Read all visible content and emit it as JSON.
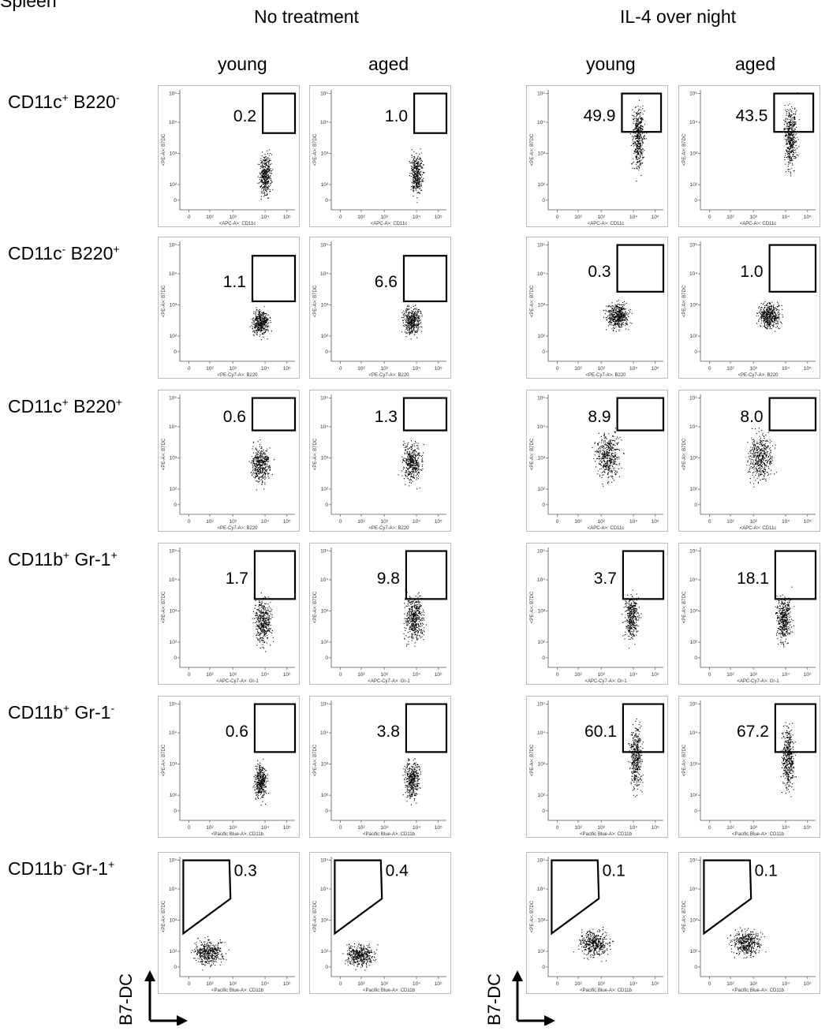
{
  "figure": {
    "corner_label": "Spleen",
    "conditions": [
      "No treatment",
      "IL-4 over night"
    ],
    "groups": [
      "young",
      "aged"
    ],
    "y_axis_label": "B7-DC"
  },
  "chart_data": {
    "type": "scatter",
    "x_ticks": [
      "0",
      "10²",
      "10³",
      "10⁴",
      "10⁵"
    ],
    "y_ticks": [
      "10⁵",
      "10⁴",
      "10³",
      "10²",
      "0"
    ],
    "y_axis_title": "<PE-A>: B7DC",
    "rows": [
      {
        "label_parts": [
          [
            "CD11c",
            "+"
          ],
          [
            "B220",
            "-"
          ]
        ],
        "x_axis_titles": [
          "<APC-A>: CD11c",
          "<APC-A>: CD11c",
          "<APC-A>: CD11c",
          "<APC-A>: CD11c"
        ],
        "gate_values": [
          "0.2",
          "1.0",
          "49.9",
          "43.5"
        ]
      },
      {
        "label_parts": [
          [
            "CD11c",
            "-"
          ],
          [
            "B220",
            "+"
          ]
        ],
        "x_axis_titles": [
          "<PE-Cy7-A>: B220",
          "<PE-Cy7-A>: B220",
          "<PE-Cy7-A>: B220",
          "<PE-Cy7-A>: B220"
        ],
        "gate_values": [
          "1.1",
          "6.6",
          "0.3",
          "1.0"
        ]
      },
      {
        "label_parts": [
          [
            "CD11c",
            "+"
          ],
          [
            "B220",
            "+"
          ]
        ],
        "x_axis_titles": [
          "<PE-Cy7-A>: B220",
          "<PE-Cy7-A>: B220",
          "<APC-A>: CD11c",
          "<APC-A>: CD11c"
        ],
        "gate_values": [
          "0.6",
          "1.3",
          "8.9",
          "8.0"
        ]
      },
      {
        "label_parts": [
          [
            "CD11b",
            "+"
          ],
          [
            "Gr-1",
            "+"
          ]
        ],
        "x_axis_titles": [
          "<APC-Cy7-A>: Gr-1",
          "<APC-Cy7-A>: Gr-1",
          "<APC-Cy7-A>: Gr-1",
          "<APC-Cy7-A>: Gr-1"
        ],
        "gate_values": [
          "1.7",
          "9.8",
          "3.7",
          "18.1"
        ]
      },
      {
        "label_parts": [
          [
            "CD11b",
            "+"
          ],
          [
            "Gr-1",
            "-"
          ]
        ],
        "x_axis_titles": [
          "<Pacific Blue-A>: CD11b",
          "<Pacific Blue-A>: CD11b",
          "<Pacific Blue-A>: CD11b",
          "<Pacific Blue-A>: CD11b"
        ],
        "gate_values": [
          "0.6",
          "3.8",
          "60.1",
          "67.2"
        ]
      },
      {
        "label_parts": [
          [
            "CD11b",
            "-"
          ],
          [
            "Gr-1",
            "+"
          ]
        ],
        "x_axis_titles": [
          "<Pacific Blue-A>: CD11b",
          "<Pacific Blue-A>: CD11b",
          "<Pacific Blue-A>: CD11b",
          "<Pacific Blue-A>: CD11b"
        ],
        "gate_values": [
          "0.3",
          "0.4",
          "0.1",
          "0.1"
        ]
      }
    ]
  }
}
